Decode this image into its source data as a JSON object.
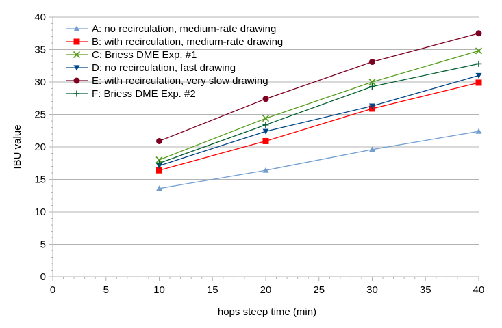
{
  "chart_data": {
    "type": "line",
    "xlabel": "hops steep time (min)",
    "ylabel": "IBU value",
    "xlim": [
      0,
      40
    ],
    "ylim": [
      0,
      40
    ],
    "x_ticks": [
      0,
      5,
      10,
      15,
      20,
      25,
      30,
      35,
      40
    ],
    "y_ticks": [
      0,
      5,
      10,
      15,
      20,
      25,
      30,
      35,
      40
    ],
    "grid": "horizontal",
    "legend_position": "top-left",
    "x": [
      10,
      20,
      30,
      40
    ],
    "series": [
      {
        "name": "A: no recirculation, medium-rate drawing",
        "values": [
          13.6,
          16.4,
          19.6,
          22.4
        ],
        "color": "#729fcf",
        "marker": "triangle-up"
      },
      {
        "name": "B: with recirculation, medium-rate drawing",
        "values": [
          16.4,
          20.9,
          25.9,
          29.9
        ],
        "color": "#ff0000",
        "marker": "square"
      },
      {
        "name": "C: Briess DME Exp. #1",
        "values": [
          18.0,
          24.4,
          30.0,
          34.8
        ],
        "color": "#579d1c",
        "marker": "x"
      },
      {
        "name": "D: no recirculation, fast drawing",
        "values": [
          17.1,
          22.4,
          26.3,
          31.0
        ],
        "color": "#004586",
        "marker": "triangle-down"
      },
      {
        "name": "E: with recirculation, very slow drawing",
        "values": [
          20.9,
          27.4,
          33.1,
          37.5
        ],
        "color": "#7e0021",
        "marker": "circle"
      },
      {
        "name": "F: Briess DME Exp. #2",
        "values": [
          17.5,
          23.4,
          29.3,
          32.8
        ],
        "color": "#006030",
        "marker": "plus"
      }
    ]
  }
}
